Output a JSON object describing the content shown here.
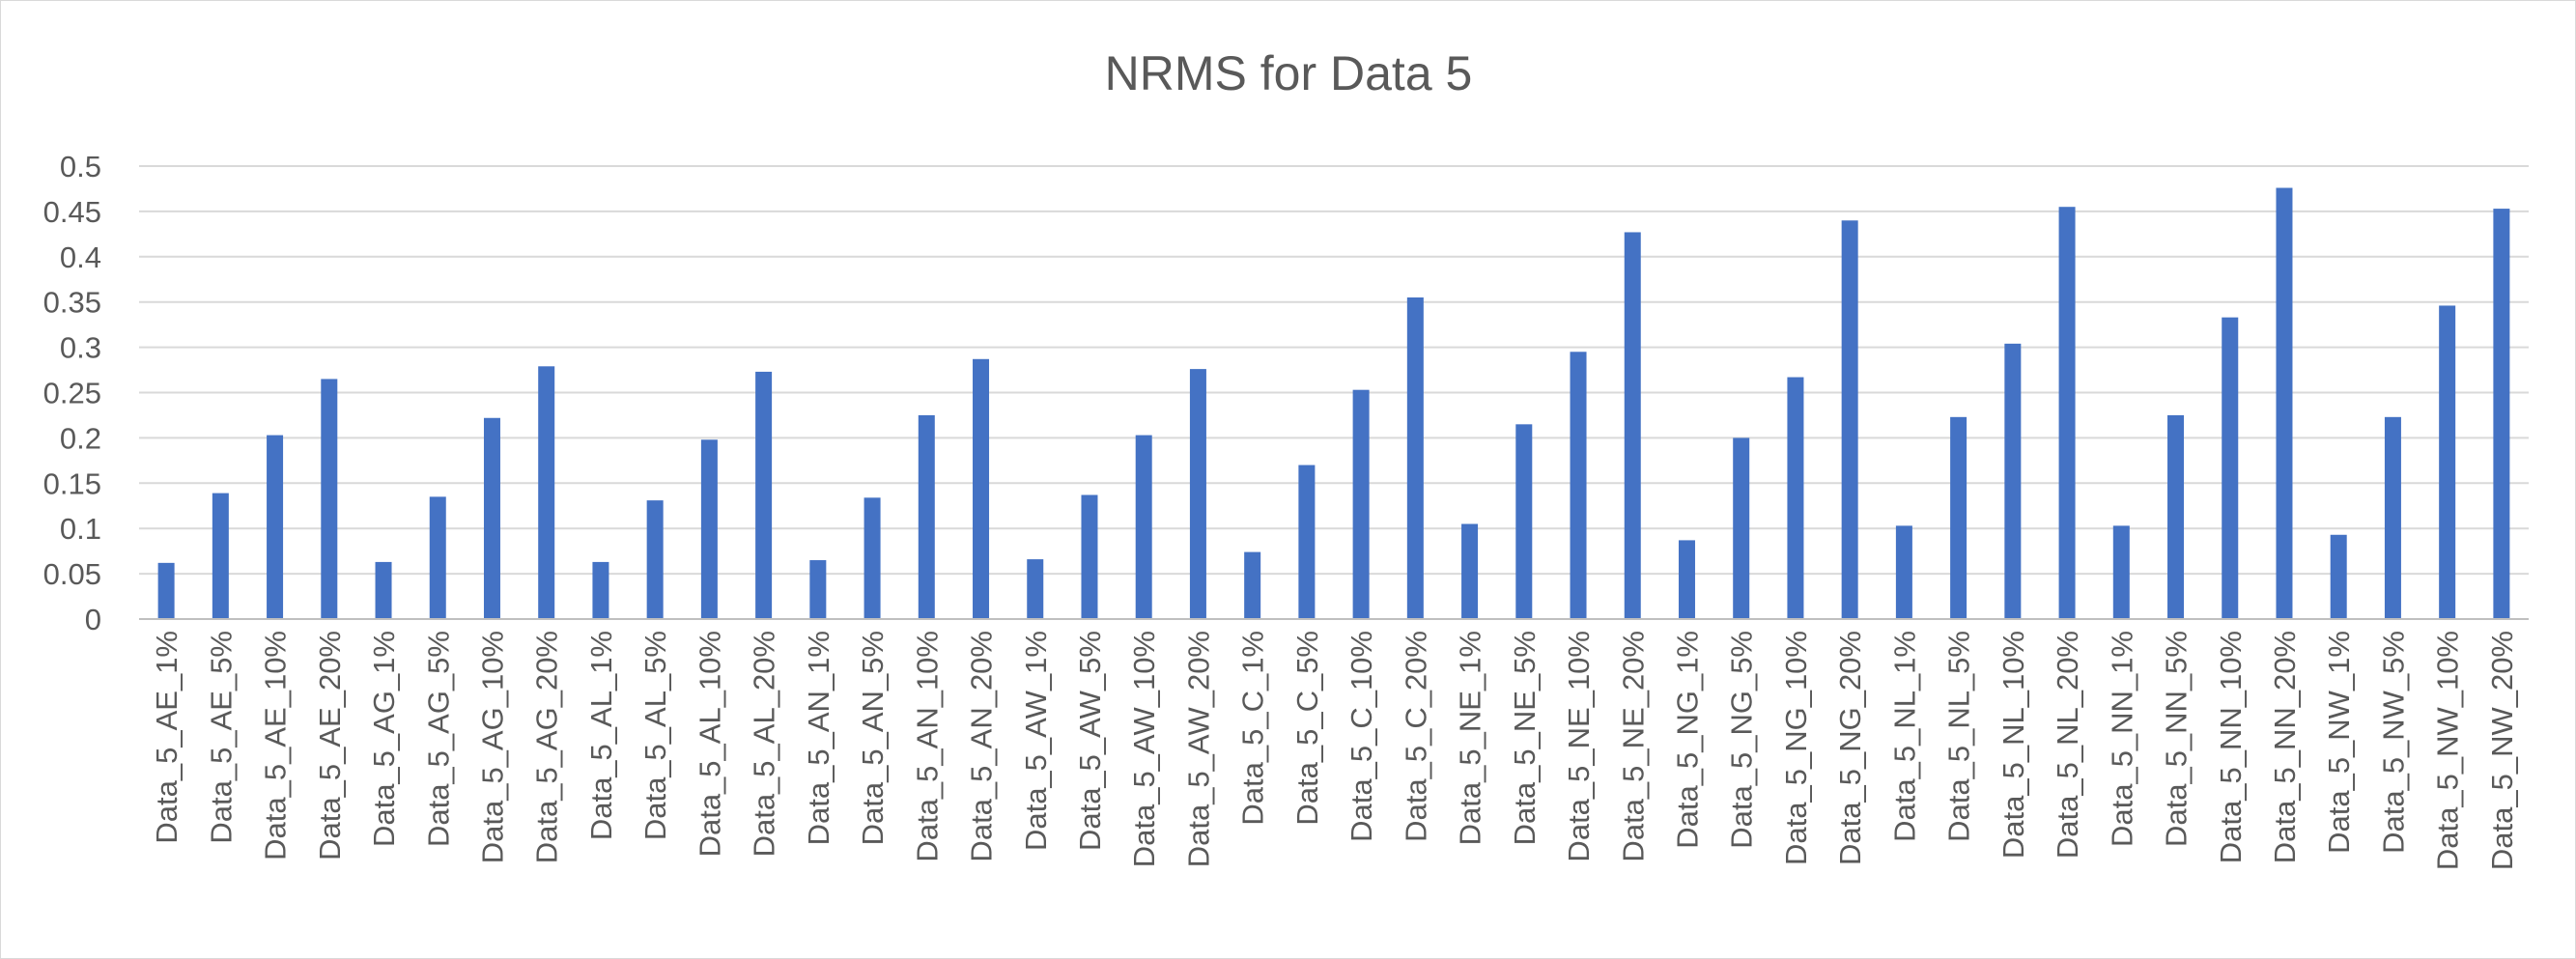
{
  "chart_data": {
    "type": "bar",
    "title": "NRMS for Data 5",
    "xlabel": "",
    "ylabel": "",
    "ylim": [
      0,
      0.5
    ],
    "yticks": [
      "0",
      "0.05",
      "0.1",
      "0.15",
      "0.2",
      "0.25",
      "0.3",
      "0.35",
      "0.4",
      "0.45",
      "0.5"
    ],
    "grid": true,
    "legend": "none",
    "bar_color": "#4472c4",
    "categories": [
      "Data_5_AE_1%",
      "Data_5_AE_5%",
      "Data_5_AE_10%",
      "Data_5_AE_20%",
      "Data_5_AG_1%",
      "Data_5_AG_5%",
      "Data_5_AG_10%",
      "Data_5_AG_20%",
      "Data_5_AL_1%",
      "Data_5_AL_5%",
      "Data_5_AL_10%",
      "Data_5_AL_20%",
      "Data_5_AN_1%",
      "Data_5_AN_5%",
      "Data_5_AN_10%",
      "Data_5_AN_20%",
      "Data_5_AW_1%",
      "Data_5_AW_5%",
      "Data_5_AW_10%",
      "Data_5_AW_20%",
      "Data_5_C_1%",
      "Data_5_C_5%",
      "Data_5_C_10%",
      "Data_5_C_20%",
      "Data_5_NE_1%",
      "Data_5_NE_5%",
      "Data_5_NE_10%",
      "Data_5_NE_20%",
      "Data_5_NG_1%",
      "Data_5_NG_5%",
      "Data_5_NG_10%",
      "Data_5_NG_20%",
      "Data_5_NL_1%",
      "Data_5_NL_5%",
      "Data_5_NL_10%",
      "Data_5_NL_20%",
      "Data_5_NN_1%",
      "Data_5_NN_5%",
      "Data_5_NN_10%",
      "Data_5_NN_20%",
      "Data_5_NW_1%",
      "Data_5_NW_5%",
      "Data_5_NW_10%",
      "Data_5_NW_20%"
    ],
    "values": [
      0.062,
      0.139,
      0.203,
      0.265,
      0.063,
      0.135,
      0.222,
      0.279,
      0.063,
      0.131,
      0.198,
      0.273,
      0.065,
      0.134,
      0.225,
      0.287,
      0.066,
      0.137,
      0.203,
      0.276,
      0.074,
      0.17,
      0.253,
      0.355,
      0.105,
      0.215,
      0.295,
      0.427,
      0.087,
      0.2,
      0.267,
      0.44,
      0.103,
      0.223,
      0.304,
      0.455,
      0.103,
      0.225,
      0.333,
      0.476,
      0.093,
      0.223,
      0.346,
      0.453
    ]
  }
}
